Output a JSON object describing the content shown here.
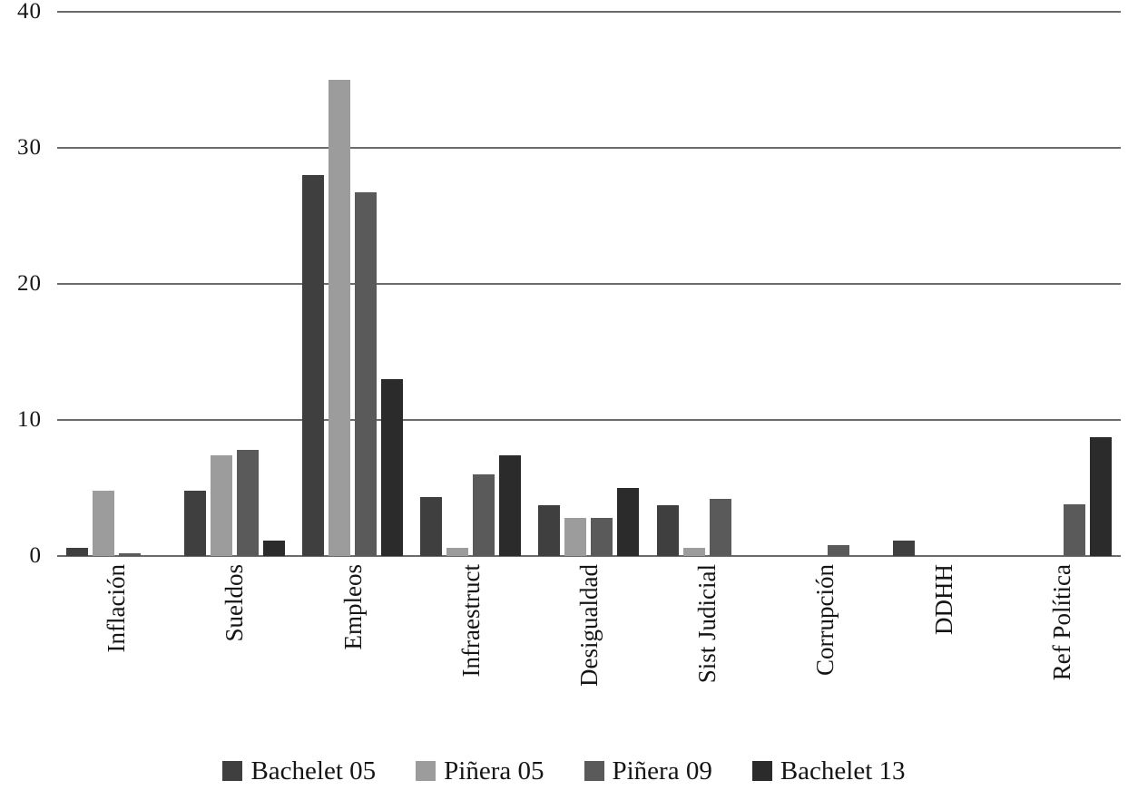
{
  "chart_data": {
    "type": "bar",
    "title": "",
    "xlabel": "",
    "ylabel": "",
    "categories": [
      "Inflación",
      "Sueldos",
      "Empleos",
      "Infraestruct",
      "Desigualdad",
      "Sist Judicial",
      "Corrupción",
      "DDHH",
      "Ref Política"
    ],
    "series": [
      {
        "name": "Bachelet 05",
        "color": "#3f3f3f",
        "values": [
          0.6,
          4.8,
          28.0,
          4.3,
          3.7,
          3.7,
          0,
          1.1,
          0
        ]
      },
      {
        "name": "Piñera 05",
        "color": "#9c9c9c",
        "values": [
          4.8,
          7.4,
          35.0,
          0.6,
          2.8,
          0.6,
          0,
          0,
          0
        ]
      },
      {
        "name": "Piñera 09",
        "color": "#5a5a5a",
        "values": [
          0.2,
          7.8,
          26.7,
          6.0,
          2.8,
          4.2,
          0.8,
          0,
          3.8
        ]
      },
      {
        "name": "Bachelet 13",
        "color": "#2b2b2b",
        "values": [
          0,
          1.1,
          13.0,
          7.4,
          5.0,
          0,
          0,
          0,
          8.7
        ]
      }
    ],
    "y_ticks": [
      "40",
      "30",
      "20",
      "10",
      "0"
    ],
    "ylim": [
      0,
      40
    ],
    "grid": "horizontal gridlines at every 10",
    "gridline_color": "#6b6b6b",
    "text_color": "#151515",
    "legend_position": "bottom"
  }
}
